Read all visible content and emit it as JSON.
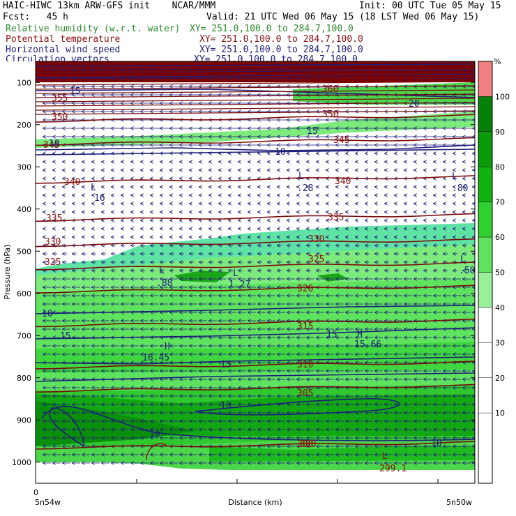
{
  "header": {
    "line1_left": "HAIC-HIWC 13km ARW-GFS init    NCAR/MMM",
    "line1_right": "Init: 00 UTC Tue 05 May 15",
    "line2_left": "Fcst:   45 h",
    "line2_right": "Valid: 21 UTC Wed 06 May 15 (18 LST Wed 06 May 15)",
    "fields": [
      {
        "label": "Relative humidity (w.r.t. water)",
        "xy": "XY= 251.0,100.0 to 284.7,100.0",
        "color": "#2e8b2e"
      },
      {
        "label": "Potential temperature",
        "xy": "XY= 251.0,100.0 to 284.7,100.0",
        "color": "#8b1010"
      },
      {
        "label": "Horizontal wind speed",
        "xy": "XY= 251.0,100.0 to 284.7,100.0",
        "color": "#1f1f7a"
      },
      {
        "label": "Circulation vectors",
        "xy": "XY= 251.0,100.0 to 284.7,100.0",
        "color": "#1f1f7a"
      }
    ]
  },
  "chart_data": {
    "type": "heatmap",
    "xlabel": "Distance (km)",
    "ylabel": "Pressure (hPa)",
    "x_tick_label": "0",
    "x_left_label": "5n54w",
    "x_right_label": "5n50w",
    "y_ticks": [
      100,
      200,
      300,
      400,
      500,
      600,
      700,
      800,
      900,
      1000
    ],
    "ylim": [
      1050,
      50
    ],
    "colorbar": {
      "unit": "%",
      "levels": [
        10,
        20,
        30,
        40,
        50,
        60,
        70,
        80,
        90,
        100
      ],
      "colors": [
        "#98f098",
        "#5fe35f",
        "#2fd02f",
        "#12b212",
        "#0a9a0a",
        "#06800a",
        "#f08080"
      ]
    },
    "theta_contours": [
      {
        "value": 350,
        "p": 185
      },
      {
        "value": 345,
        "p": 240
      },
      {
        "value": 340,
        "p": 330
      },
      {
        "value": 335,
        "p": 420
      },
      {
        "value": 330,
        "p": 480
      },
      {
        "value": 325,
        "p": 535
      },
      {
        "value": 320,
        "p": 590
      },
      {
        "value": 315,
        "p": 670
      },
      {
        "value": 310,
        "p": 770
      },
      {
        "value": 305,
        "p": 825
      },
      {
        "value": 300,
        "p": 960
      }
    ],
    "theta_labels": [
      "355",
      "350",
      "345",
      "340",
      "335",
      "330",
      "325",
      "320",
      "315",
      "310",
      "305",
      "300",
      "360"
    ],
    "wind_labels": [
      "15",
      "20",
      "10",
      "15",
      "10",
      "15",
      "10",
      "15",
      "15",
      "10",
      "10",
      "10"
    ],
    "extrema": [
      {
        "kind": "L",
        "value": "16"
      },
      {
        "kind": "L",
        "value": ".28"
      },
      {
        "kind": "L",
        "value": ".80"
      },
      {
        "kind": "L",
        "value": ".88"
      },
      {
        "kind": "L",
        "value": "1.27"
      },
      {
        "kind": "L",
        "value": ".50"
      },
      {
        "kind": "H",
        "value": "15.66"
      },
      {
        "kind": "H",
        "value": "16.45"
      },
      {
        "kind": "L",
        "value": "299.1"
      }
    ]
  }
}
